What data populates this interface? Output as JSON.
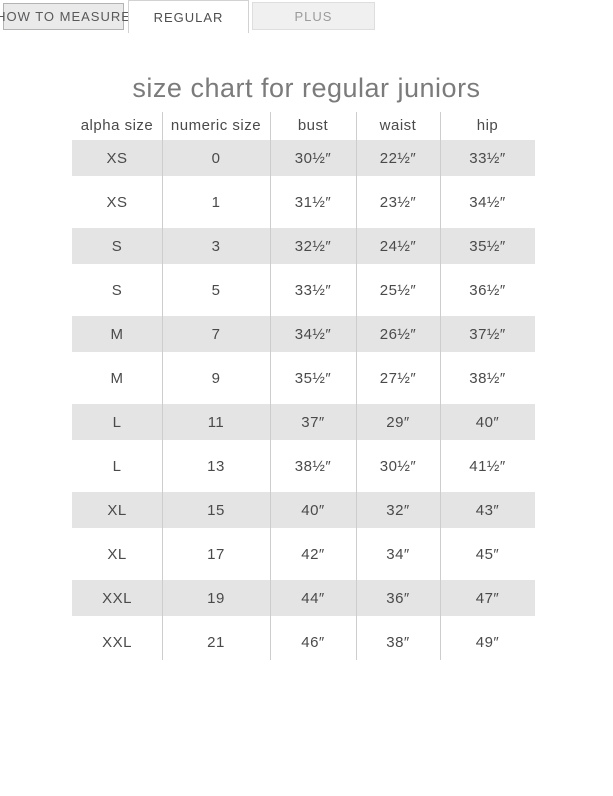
{
  "tabs": [
    {
      "label": "HOW TO MEASURE",
      "active": false
    },
    {
      "label": "REGULAR",
      "active": true
    },
    {
      "label": "PLUS",
      "active": false
    }
  ],
  "title": "size chart for regular juniors",
  "table": {
    "columns": [
      "alpha size",
      "numeric size",
      "bust",
      "waist",
      "hip"
    ],
    "rows": [
      [
        "XS",
        "0",
        "30½″",
        "22½″",
        "33½″"
      ],
      [
        "XS",
        "1",
        "31½″",
        "23½″",
        "34½″"
      ],
      [
        "S",
        "3",
        "32½″",
        "24½″",
        "35½″"
      ],
      [
        "S",
        "5",
        "33½″",
        "25½″",
        "36½″"
      ],
      [
        "M",
        "7",
        "34½″",
        "26½″",
        "37½″"
      ],
      [
        "M",
        "9",
        "35½″",
        "27½″",
        "38½″"
      ],
      [
        "L",
        "11",
        "37″",
        "29″",
        "40″"
      ],
      [
        "L",
        "13",
        "38½″",
        "30½″",
        "41½″"
      ],
      [
        "XL",
        "15",
        "40″",
        "32″",
        "43″"
      ],
      [
        "XL",
        "17",
        "42″",
        "34″",
        "45″"
      ],
      [
        "XXL",
        "19",
        "44″",
        "36″",
        "47″"
      ],
      [
        "XXL",
        "21",
        "46″",
        "38″",
        "49″"
      ]
    ]
  },
  "colors": {
    "stripe_row": "#e4e4e4",
    "divider": "#cdcdcd",
    "body_text": "#4a4a4a",
    "title_text": "#7b7b7b",
    "inactive_tab_text": "#9b9b9b"
  }
}
